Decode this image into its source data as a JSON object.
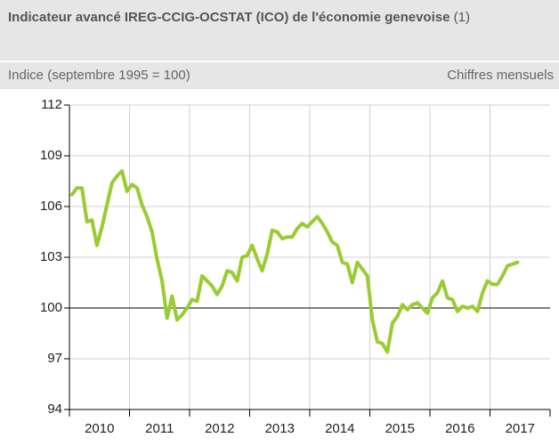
{
  "chart_data": {
    "type": "line",
    "title": "Indicateur avancé IREG-CCIG-OCSTAT (ICO) de l'économie genevoise",
    "title_note": "(1)",
    "subtitle": "Indice (septembre 1995 = 100)",
    "note": "Chiffres mensuels",
    "x": [
      2010.042,
      2010.125,
      2010.208,
      2010.292,
      2010.375,
      2010.458,
      2010.542,
      2010.625,
      2010.708,
      2010.792,
      2010.875,
      2010.958,
      2011.042,
      2011.125,
      2011.208,
      2011.292,
      2011.375,
      2011.458,
      2011.542,
      2011.625,
      2011.708,
      2011.792,
      2011.875,
      2011.958,
      2012.042,
      2012.125,
      2012.208,
      2012.292,
      2012.375,
      2012.458,
      2012.542,
      2012.625,
      2012.708,
      2012.792,
      2012.875,
      2012.958,
      2013.042,
      2013.125,
      2013.208,
      2013.292,
      2013.375,
      2013.458,
      2013.542,
      2013.625,
      2013.708,
      2013.792,
      2013.875,
      2013.958,
      2014.042,
      2014.125,
      2014.208,
      2014.292,
      2014.375,
      2014.458,
      2014.542,
      2014.625,
      2014.708,
      2014.792,
      2014.875,
      2014.958,
      2015.042,
      2015.125,
      2015.208,
      2015.292,
      2015.375,
      2015.458,
      2015.542,
      2015.625,
      2015.708,
      2015.792,
      2015.875,
      2015.958,
      2016.042,
      2016.125,
      2016.208,
      2016.292,
      2016.375,
      2016.458,
      2016.542,
      2016.625,
      2016.708,
      2016.792,
      2016.875,
      2016.958,
      2017.042,
      2017.125,
      2017.208,
      2017.292,
      2017.375,
      2017.458
    ],
    "series": [
      {
        "name": "ICO",
        "color": "#99cc33",
        "values": [
          106.7,
          107.1,
          107.1,
          105.1,
          105.2,
          103.7,
          104.8,
          106.1,
          107.4,
          107.8,
          108.1,
          106.9,
          107.3,
          107.1,
          106.1,
          105.4,
          104.5,
          102.9,
          101.6,
          99.4,
          100.7,
          99.3,
          99.6,
          100.0,
          100.5,
          100.4,
          101.9,
          101.6,
          101.3,
          100.8,
          101.3,
          102.2,
          102.1,
          101.6,
          103.0,
          103.1,
          103.7,
          102.9,
          102.2,
          103.2,
          104.6,
          104.5,
          104.1,
          104.2,
          104.2,
          104.7,
          105.0,
          104.8,
          105.1,
          105.4,
          105.0,
          104.5,
          103.9,
          103.7,
          102.7,
          102.6,
          101.5,
          102.7,
          102.3,
          101.9,
          99.3,
          98.0,
          97.9,
          97.4,
          99.1,
          99.5,
          100.2,
          99.9,
          100.2,
          100.3,
          100.0,
          99.7,
          100.6,
          100.9,
          101.6,
          100.6,
          100.5,
          99.8,
          100.1,
          100.0,
          100.1,
          99.8,
          100.9,
          101.6,
          101.4,
          101.4,
          101.9,
          102.5,
          102.6,
          102.7
        ]
      }
    ],
    "xlim": [
      2010,
      2018
    ],
    "xticks": [
      2010,
      2011,
      2012,
      2013,
      2014,
      2015,
      2016,
      2017
    ],
    "ylim": [
      94,
      112
    ],
    "yticks": [
      94,
      97,
      100,
      103,
      106,
      109,
      112
    ],
    "reference_line": 100,
    "grid": true
  }
}
